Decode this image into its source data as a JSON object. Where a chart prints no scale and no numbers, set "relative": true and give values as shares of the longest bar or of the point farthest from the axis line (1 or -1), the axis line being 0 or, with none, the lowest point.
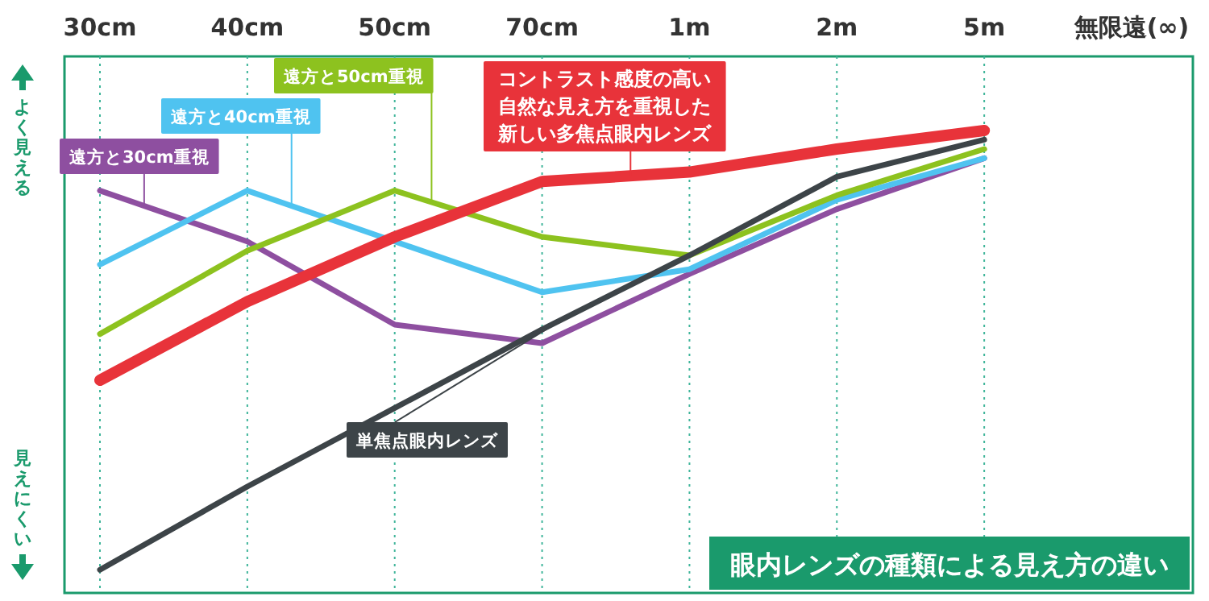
{
  "chart_data": {
    "type": "line",
    "title": "眼内レンズの種類による見え方の違い",
    "relative": true,
    "grid": "x",
    "line_style": "solid",
    "categories": [
      "30cm",
      "40cm",
      "50cm",
      "70cm",
      "1m",
      "2m",
      "5m",
      "無限遠(∞)"
    ],
    "annotations": [
      "よく見える",
      "見えにくい"
    ],
    "series": [
      {
        "name": "遠方と30cm重視",
        "color": "#8e4fa0",
        "values": [
          0.87,
          0.76,
          0.58,
          0.54,
          0.69,
          0.83,
          0.94,
          null
        ]
      },
      {
        "name": "遠方と40cm重視",
        "color": "#4fc3f0",
        "values": [
          0.71,
          0.87,
          0.76,
          0.65,
          0.7,
          0.85,
          0.94,
          null
        ]
      },
      {
        "name": "遠方と50cm重視",
        "color": "#8dc21f",
        "values": [
          0.56,
          0.74,
          0.87,
          0.77,
          0.73,
          0.86,
          0.96,
          null
        ]
      },
      {
        "name": "単焦点眼内レンズ",
        "color": "#3d4448",
        "values": [
          0.05,
          0.23,
          0.4,
          0.57,
          0.73,
          0.9,
          0.98,
          null
        ]
      },
      {
        "name": "コントラスト感度の高い自然な見え方を重視した新しい多焦点眼内レンズ",
        "color": "#e8333a",
        "values": [
          0.46,
          0.63,
          0.77,
          0.89,
          0.91,
          0.96,
          1,
          null
        ]
      }
    ]
  }
}
